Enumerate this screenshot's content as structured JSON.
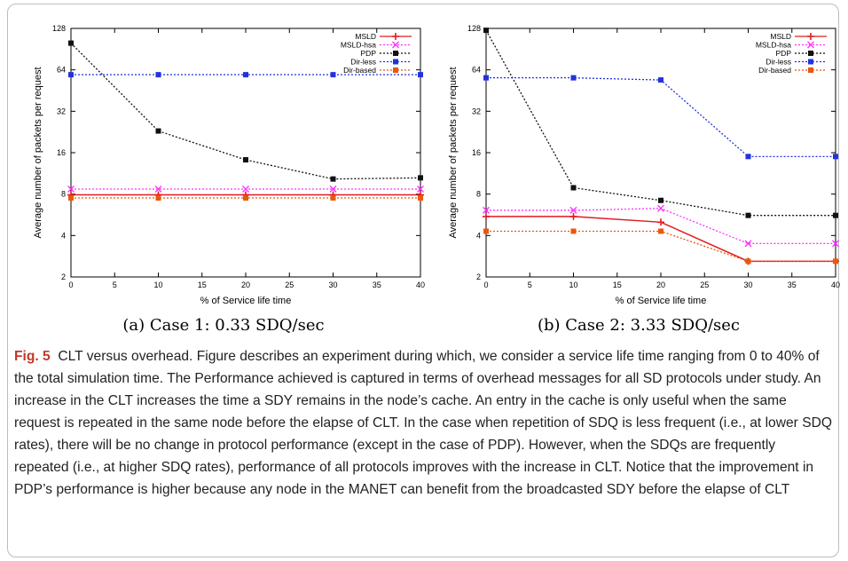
{
  "figure": {
    "label": "Fig. 5",
    "caption": "CLT versus overhead. Figure describes an experiment during which, we consider a service life time ranging from 0 to 40% of the total simulation time. The Performance achieved is captured in terms of overhead messages for all SD protocols under study. An increase in the CLT increases the time a SDY remains in the node’s cache. An entry in the cache is only useful when the same request is repeated in the same node before the elapse of CLT. In the case when repetition of SDQ is less frequent (i.e., at lower SDQ rates), there will be no change in protocol performance (except in the case of PDP). However, when the SDQs are frequently repeated (i.e., at higher SDQ rates), performance of all protocols improves with the increase in CLT. Notice that the improvement in PDP’s performance is higher because any node in the MANET can benefit from the broadcasted SDY before the elapse of CLT"
  },
  "colors": {
    "MSLD": "#e41a1c",
    "MSLD-hsa": "#ff33ff",
    "PDP": "#111111",
    "Dir-less": "#2233dd",
    "Dir-based": "#e8590c"
  },
  "chart_data": [
    {
      "type": "line",
      "subcaption": "(a)  Case 1: 0.33 SDQ/sec",
      "xlabel": "% of Service life time",
      "ylabel": "Average number of packets per request",
      "xlim": [
        0,
        40
      ],
      "xticks": [
        "0",
        "5",
        "10",
        "15",
        "20",
        "25",
        "30",
        "35",
        "40"
      ],
      "ylim": [
        2,
        128
      ],
      "yscale": "log2",
      "yticks": [
        "2",
        "4",
        "8",
        "16",
        "32",
        "64",
        "128"
      ],
      "legend_position": "top-right",
      "x": [
        0,
        10,
        20,
        30,
        40
      ],
      "series": [
        {
          "name": "MSLD",
          "marker": "plus",
          "values": [
            7.9,
            7.9,
            7.9,
            7.9,
            7.9
          ]
        },
        {
          "name": "MSLD-hsa",
          "marker": "x",
          "values": [
            8.7,
            8.7,
            8.7,
            8.7,
            8.7
          ]
        },
        {
          "name": "PDP",
          "marker": "square",
          "values": [
            100,
            23,
            14.2,
            10.3,
            10.5
          ]
        },
        {
          "name": "Dir-less",
          "marker": "square",
          "values": [
            59,
            59,
            59,
            59,
            59
          ]
        },
        {
          "name": "Dir-based",
          "marker": "square",
          "values": [
            7.5,
            7.5,
            7.5,
            7.5,
            7.5
          ]
        }
      ]
    },
    {
      "type": "line",
      "subcaption": "(b)  Case 2: 3.33 SDQ/sec",
      "xlabel": "% of Service life time",
      "ylabel": "Average number of packets per request",
      "xlim": [
        0,
        40
      ],
      "xticks": [
        "0",
        "5",
        "10",
        "15",
        "20",
        "25",
        "30",
        "35",
        "40"
      ],
      "ylim": [
        2,
        128
      ],
      "yscale": "log2",
      "yticks": [
        "2",
        "4",
        "8",
        "16",
        "32",
        "64",
        "128"
      ],
      "legend_position": "top-right",
      "x": [
        0,
        10,
        20,
        30,
        40
      ],
      "series": [
        {
          "name": "MSLD",
          "marker": "plus",
          "values": [
            5.5,
            5.5,
            5.0,
            2.6,
            2.6
          ]
        },
        {
          "name": "MSLD-hsa",
          "marker": "x",
          "values": [
            6.1,
            6.1,
            6.3,
            3.5,
            3.5
          ]
        },
        {
          "name": "PDP",
          "marker": "square",
          "values": [
            124,
            8.9,
            7.2,
            5.6,
            5.6
          ]
        },
        {
          "name": "Dir-less",
          "marker": "square",
          "values": [
            56,
            56,
            54,
            15,
            15
          ]
        },
        {
          "name": "Dir-based",
          "marker": "square",
          "values": [
            4.3,
            4.3,
            4.3,
            2.6,
            2.6
          ]
        }
      ]
    }
  ]
}
